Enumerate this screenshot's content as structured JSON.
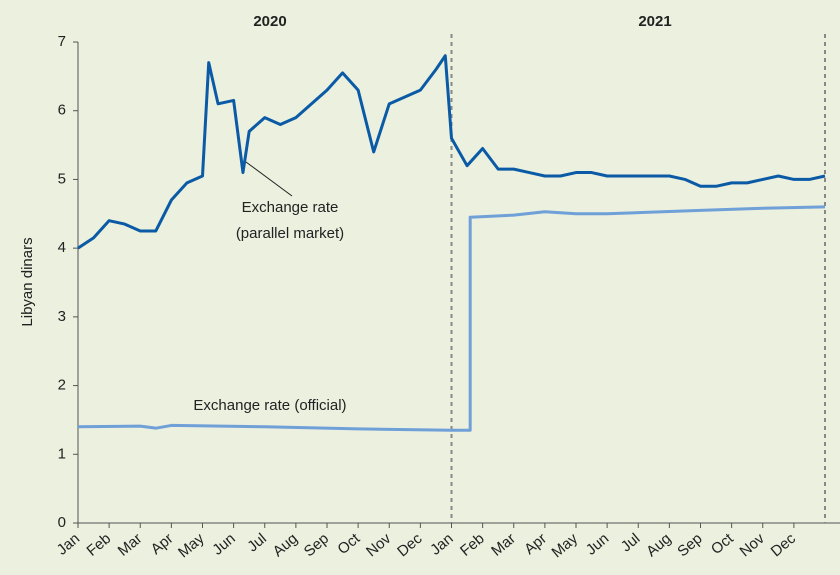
{
  "chart_data": {
    "type": "line",
    "y_label": "Libyan dinars",
    "annotations": [
      "2020",
      "2021",
      "Exchange rate",
      "(parallel market)",
      "Exchange rate (official)"
    ],
    "xlim": [
      0,
      24
    ],
    "xticks": [
      {
        "value": 0,
        "label": "Jan"
      },
      {
        "value": 1,
        "label": "Feb"
      },
      {
        "value": 2,
        "label": "Mar"
      },
      {
        "value": 3,
        "label": "Apr"
      },
      {
        "value": 4,
        "label": "May"
      },
      {
        "value": 5,
        "label": "Jun"
      },
      {
        "value": 6,
        "label": "Jul"
      },
      {
        "value": 7,
        "label": "Aug"
      },
      {
        "value": 8,
        "label": "Sep"
      },
      {
        "value": 9,
        "label": "Oct"
      },
      {
        "value": 10,
        "label": "Nov"
      },
      {
        "value": 11,
        "label": "Dec"
      },
      {
        "value": 12,
        "label": "Jan"
      },
      {
        "value": 13,
        "label": "Feb"
      },
      {
        "value": 14,
        "label": "Mar"
      },
      {
        "value": 15,
        "label": "Apr"
      },
      {
        "value": 16,
        "label": "May"
      },
      {
        "value": 17,
        "label": "Jun"
      },
      {
        "value": 18,
        "label": "Jul"
      },
      {
        "value": 19,
        "label": "Aug"
      },
      {
        "value": 20,
        "label": "Sep"
      },
      {
        "value": 21,
        "label": "Oct"
      },
      {
        "value": 22,
        "label": "Nov"
      },
      {
        "value": 23,
        "label": "Dec"
      }
    ],
    "ylim": [
      0,
      7
    ],
    "yticks": [
      0,
      1,
      2,
      3,
      4,
      5,
      6,
      7
    ],
    "dividers": [
      12,
      24
    ],
    "series": [
      {
        "name": "Exchange rate (parallel market)",
        "color": "#0b5aa6",
        "x": [
          0,
          0.5,
          1,
          1.5,
          2,
          2.5,
          3,
          3.5,
          4,
          4.2,
          4.5,
          5,
          5.3,
          5.5,
          6,
          6.5,
          7,
          7.5,
          8,
          8.5,
          9,
          9.5,
          10,
          10.5,
          11,
          11.5,
          11.8,
          12,
          12.5,
          13,
          13.5,
          14,
          14.5,
          15,
          15.5,
          16,
          16.5,
          17,
          17.5,
          18,
          18.5,
          19,
          19.5,
          20,
          20.5,
          21,
          21.5,
          22,
          22.5,
          23,
          23.5,
          24
        ],
        "values": [
          4.0,
          4.15,
          4.4,
          4.35,
          4.25,
          4.25,
          4.7,
          4.95,
          5.05,
          6.7,
          6.1,
          6.15,
          5.1,
          5.7,
          5.9,
          5.8,
          5.9,
          6.1,
          6.3,
          6.55,
          6.3,
          5.4,
          6.1,
          6.2,
          6.3,
          6.6,
          6.8,
          5.6,
          5.2,
          5.45,
          5.15,
          5.15,
          5.1,
          5.05,
          5.05,
          5.1,
          5.1,
          5.05,
          5.05,
          5.05,
          5.05,
          5.05,
          5.0,
          4.9,
          4.9,
          4.95,
          4.95,
          5.0,
          5.05,
          5.0,
          5.0,
          5.05
        ]
      },
      {
        "name": "Exchange rate (official)",
        "color": "#6fa0d8",
        "x": [
          0,
          2,
          2.5,
          3,
          6,
          9,
          12,
          12.6,
          12.6,
          14,
          15,
          16,
          17,
          20,
          22,
          24
        ],
        "values": [
          1.4,
          1.41,
          1.38,
          1.42,
          1.4,
          1.37,
          1.35,
          1.35,
          4.45,
          4.48,
          4.53,
          4.5,
          4.5,
          4.55,
          4.58,
          4.6
        ]
      }
    ]
  }
}
